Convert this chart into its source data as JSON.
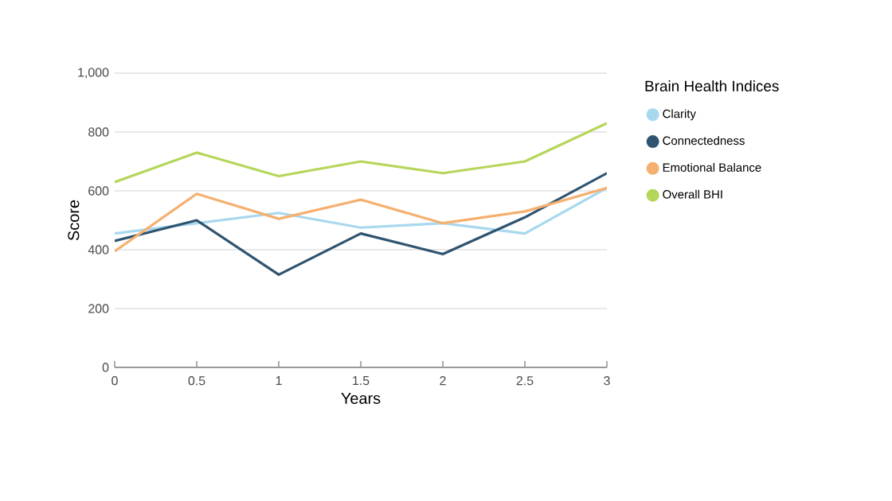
{
  "chart_data": {
    "type": "line",
    "xlabel": "Years",
    "ylabel": "Score",
    "legend_title": "Brain Health Indices",
    "x": [
      0,
      0.5,
      1,
      1.5,
      2,
      2.5,
      3
    ],
    "series": [
      {
        "name": "Clarity",
        "color": "#a8d8ee",
        "values": [
          455,
          490,
          525,
          475,
          490,
          455,
          610
        ]
      },
      {
        "name": "Connectedness",
        "color": "#2f5470",
        "values": [
          430,
          500,
          315,
          455,
          385,
          510,
          660
        ]
      },
      {
        "name": "Emotional Balance",
        "color": "#f5b070",
        "values": [
          395,
          590,
          505,
          570,
          490,
          530,
          610
        ]
      },
      {
        "name": "Overall BHI",
        "color": "#b5d65a",
        "values": [
          630,
          730,
          650,
          700,
          660,
          700,
          830
        ]
      }
    ],
    "xlim": [
      0,
      3
    ],
    "xticks": [
      0,
      0.5,
      1,
      1.5,
      2,
      2.5,
      3
    ],
    "ylim": [
      0,
      1000
    ],
    "yticks": [
      0,
      200,
      400,
      600,
      800,
      {
        "value": 1000,
        "label": "1,000"
      }
    ],
    "grid": "y",
    "legend": "top right",
    "marker": "none",
    "line_style": "solid"
  }
}
